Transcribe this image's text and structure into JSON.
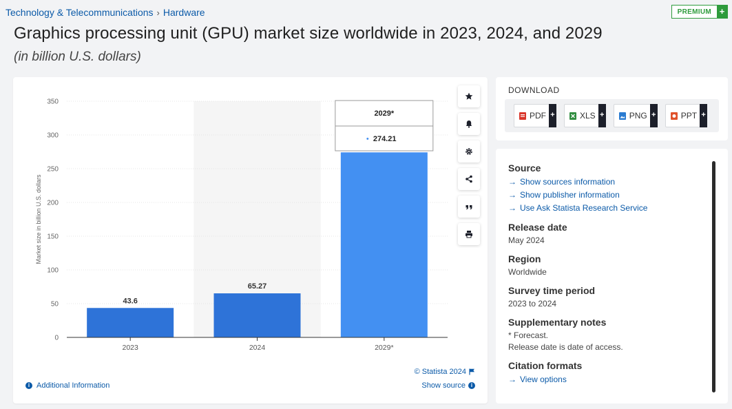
{
  "breadcrumb": {
    "category": "Technology & Telecommunications",
    "separator": "›",
    "subcategory": "Hardware"
  },
  "premium": {
    "label": "PREMIUM",
    "plus": "+"
  },
  "header": {
    "title": "Graphics processing unit (GPU) market size worldwide in 2023, 2024, and 2029",
    "subtitle": "(in billion U.S. dollars)"
  },
  "chart_data": {
    "type": "bar",
    "categories": [
      "2023",
      "2024",
      "2029*"
    ],
    "values": [
      43.6,
      65.27,
      274.21
    ],
    "data_labels": [
      "43.6",
      "65.27",
      "274.21"
    ],
    "ylabel": "Market size in billion U.S. dollars",
    "xlabel": "",
    "ylim": [
      0,
      350
    ],
    "yticks": [
      0,
      50,
      100,
      150,
      200,
      250,
      300,
      350
    ],
    "grid": true,
    "colors": {
      "bar": "#2e73d8",
      "bar_highlight": "#4390f2",
      "hover_band": "#f5f5f5"
    },
    "tooltip": {
      "category": "2029*",
      "value": "274.21",
      "bullet": "•"
    },
    "highlighted_index": 2,
    "shaded_index": 1
  },
  "chart_footer": {
    "copyright": "© Statista 2024",
    "show_source": "Show source",
    "additional_info": "Additional Information"
  },
  "tools": [
    {
      "name": "favorite",
      "icon": "star-icon"
    },
    {
      "name": "notify",
      "icon": "bell-icon"
    },
    {
      "name": "settings",
      "icon": "gear-icon"
    },
    {
      "name": "share",
      "icon": "share-icon"
    },
    {
      "name": "cite",
      "icon": "quote-icon"
    },
    {
      "name": "print",
      "icon": "print-icon"
    }
  ],
  "download": {
    "title": "DOWNLOAD",
    "buttons": [
      {
        "label": "PDF",
        "icon": "pdf-icon",
        "color": "#d9362b"
      },
      {
        "label": "XLS",
        "icon": "xls-icon",
        "color": "#2f8d3f"
      },
      {
        "label": "PNG",
        "icon": "png-icon",
        "color": "#2a7bd1"
      },
      {
        "label": "PPT",
        "icon": "ppt-icon",
        "color": "#e0522b"
      }
    ],
    "plus": "+"
  },
  "info": {
    "source_title": "Source",
    "source_links": [
      "Show sources information",
      "Show publisher information",
      "Use Ask Statista Research Service"
    ],
    "release_title": "Release date",
    "release_value": "May 2024",
    "region_title": "Region",
    "region_value": "Worldwide",
    "period_title": "Survey time period",
    "period_value": "2023 to 2024",
    "notes_title": "Supplementary notes",
    "notes_line1": "* Forecast.",
    "notes_line2": "Release date is date of access.",
    "citation_title": "Citation formats",
    "citation_link": "View options",
    "arrow": "→"
  }
}
